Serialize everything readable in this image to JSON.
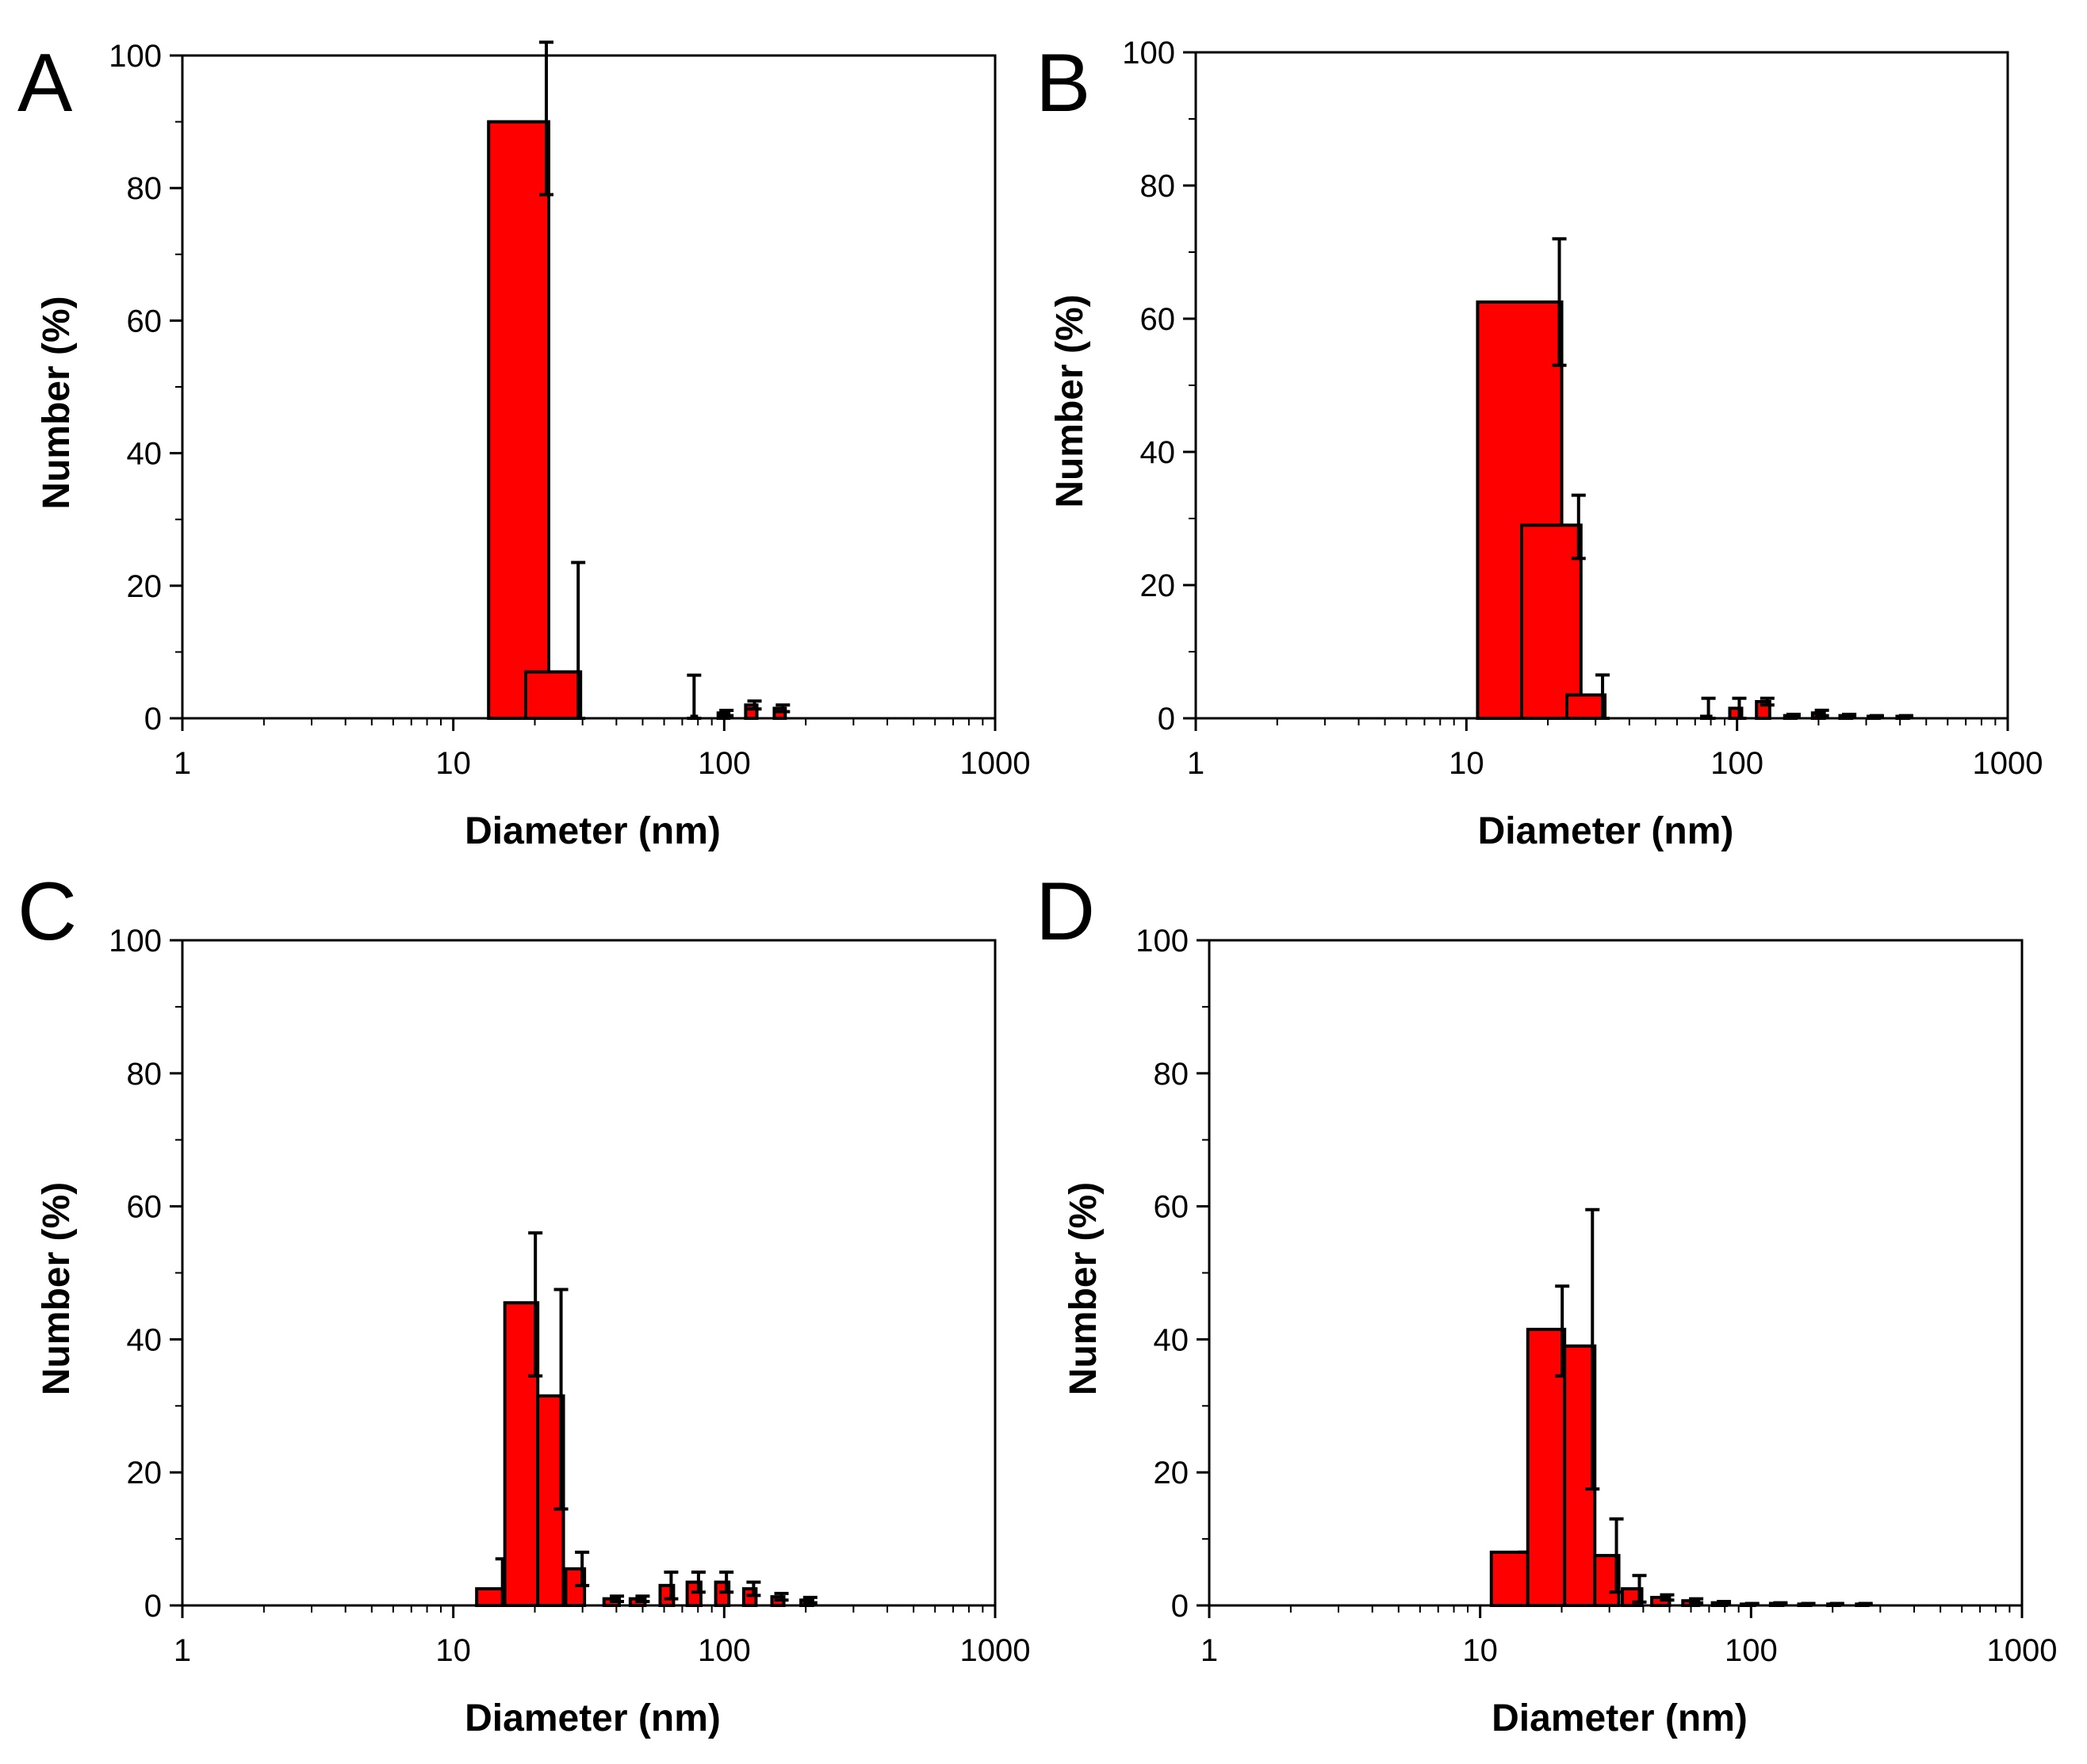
{
  "chart_data": [
    {
      "panel": "A",
      "type": "bar",
      "xscale": "log",
      "xlim": [
        1,
        1000
      ],
      "ylim": [
        0,
        100
      ],
      "xlabel": "Diameter (nm)",
      "ylabel": "Number (%)",
      "xticks": [
        "1",
        "10",
        "100",
        "1000"
      ],
      "yticks": [
        "0",
        "20",
        "40",
        "60",
        "80",
        "100"
      ],
      "bars": [
        {
          "from": 13.5,
          "to": 22.5,
          "value": 90,
          "err_high": 102,
          "err_low": 79
        },
        {
          "from": 18.5,
          "to": 29.5,
          "value": 7,
          "err_high": 23.5,
          "err_low": 0
        },
        {
          "from": 76,
          "to": 79,
          "value": 0.3,
          "err_high": 6.5,
          "err_low": 0
        },
        {
          "from": 95,
          "to": 104,
          "value": 0.8,
          "err_high": 1.2,
          "err_low": 0.4
        },
        {
          "from": 120,
          "to": 132,
          "value": 2,
          "err_high": 2.6,
          "err_low": 1.4
        },
        {
          "from": 153,
          "to": 168,
          "value": 1.5,
          "err_high": 2,
          "err_low": 1
        }
      ]
    },
    {
      "panel": "B",
      "type": "bar",
      "xscale": "log",
      "xlim": [
        1,
        1000
      ],
      "ylim": [
        0,
        100
      ],
      "xlabel": "Diameter (nm)",
      "ylabel": "Number (%)",
      "xticks": [
        "1",
        "10",
        "100",
        "1000"
      ],
      "yticks": [
        "0",
        "20",
        "40",
        "60",
        "80",
        "100"
      ],
      "bars": [
        {
          "from": 11,
          "to": 22.5,
          "value": 62.5,
          "err_high": 72,
          "err_low": 53
        },
        {
          "from": 16,
          "to": 26.5,
          "value": 29,
          "err_high": 33.5,
          "err_low": 24
        },
        {
          "from": 23.5,
          "to": 32.5,
          "value": 3.5,
          "err_high": 6.5,
          "err_low": 0
        },
        {
          "from": 74,
          "to": 80,
          "value": 0.3,
          "err_high": 3,
          "err_low": 0
        },
        {
          "from": 94,
          "to": 104,
          "value": 1.5,
          "err_high": 3,
          "err_low": 0
        },
        {
          "from": 118,
          "to": 132,
          "value": 2.5,
          "err_high": 3,
          "err_low": 2
        },
        {
          "from": 150,
          "to": 165,
          "value": 0.4,
          "err_high": 0.6,
          "err_low": 0.2
        },
        {
          "from": 190,
          "to": 210,
          "value": 0.8,
          "err_high": 1.2,
          "err_low": 0.4
        },
        {
          "from": 240,
          "to": 265,
          "value": 0.4,
          "err_high": 0.6,
          "err_low": 0.2
        },
        {
          "from": 305,
          "to": 335,
          "value": 0.3,
          "err_high": 0.4,
          "err_low": 0.2
        },
        {
          "from": 390,
          "to": 430,
          "value": 0.3,
          "err_high": 0.4,
          "err_low": 0.2
        }
      ]
    },
    {
      "panel": "C",
      "type": "bar",
      "xscale": "log",
      "xlim": [
        1,
        1000
      ],
      "ylim": [
        0,
        100
      ],
      "xlabel": "Diameter (nm)",
      "ylabel": "Number (%)",
      "xticks": [
        "1",
        "10",
        "100",
        "1000"
      ],
      "yticks": [
        "0",
        "20",
        "40",
        "60",
        "80",
        "100"
      ],
      "bars": [
        {
          "from": 12.2,
          "to": 15.5,
          "value": 2.5,
          "err_high": 7,
          "err_low": 0
        },
        {
          "from": 15.5,
          "to": 20.5,
          "value": 45.5,
          "err_high": 56,
          "err_low": 34.5
        },
        {
          "from": 20.5,
          "to": 25.5,
          "value": 31.5,
          "err_high": 47.5,
          "err_low": 14.5
        },
        {
          "from": 26,
          "to": 30.5,
          "value": 5.5,
          "err_high": 8,
          "err_low": 3
        },
        {
          "from": 36,
          "to": 41,
          "value": 1,
          "err_high": 1.4,
          "err_low": 0.6
        },
        {
          "from": 45,
          "to": 51,
          "value": 1,
          "err_high": 1.4,
          "err_low": 0.6
        },
        {
          "from": 58,
          "to": 65,
          "value": 3,
          "err_high": 5,
          "err_low": 1
        },
        {
          "from": 73,
          "to": 82,
          "value": 3.5,
          "err_high": 5,
          "err_low": 2
        },
        {
          "from": 93,
          "to": 104,
          "value": 3.5,
          "err_high": 5,
          "err_low": 2
        },
        {
          "from": 118,
          "to": 131,
          "value": 2.5,
          "err_high": 3.5,
          "err_low": 1.5
        },
        {
          "from": 150,
          "to": 166,
          "value": 1.3,
          "err_high": 1.8,
          "err_low": 0.8
        },
        {
          "from": 192,
          "to": 212,
          "value": 0.8,
          "err_high": 1.2,
          "err_low": 0.4
        }
      ]
    },
    {
      "panel": "D",
      "type": "bar",
      "xscale": "log",
      "xlim": [
        1,
        1000
      ],
      "ylim": [
        0,
        100
      ],
      "xlabel": "Diameter (nm)",
      "ylabel": "Number (%)",
      "xticks": [
        "1",
        "10",
        "100",
        "1000"
      ],
      "yticks": [
        "0",
        "20",
        "40",
        "60",
        "80",
        "100"
      ],
      "bars": [
        {
          "from": 11,
          "to": 15,
          "value": 8,
          "err_high": 8,
          "err_low": 8
        },
        {
          "from": 15,
          "to": 20.5,
          "value": 41.5,
          "err_high": 48,
          "err_low": 34.5
        },
        {
          "from": 20.5,
          "to": 26.5,
          "value": 39,
          "err_high": 59.5,
          "err_low": 17.5
        },
        {
          "from": 26.5,
          "to": 32.5,
          "value": 7.5,
          "err_high": 13,
          "err_low": 2
        },
        {
          "from": 33.5,
          "to": 39.5,
          "value": 2.5,
          "err_high": 4.5,
          "err_low": 0.5
        },
        {
          "from": 43,
          "to": 50,
          "value": 1.2,
          "err_high": 1.6,
          "err_low": 0.8
        },
        {
          "from": 56,
          "to": 64,
          "value": 0.7,
          "err_high": 1,
          "err_low": 0.4
        },
        {
          "from": 72,
          "to": 81,
          "value": 0.4,
          "err_high": 0.6,
          "err_low": 0.2
        },
        {
          "from": 92,
          "to": 103,
          "value": 0.2,
          "err_high": 0.3,
          "err_low": 0.1
        },
        {
          "from": 118,
          "to": 131,
          "value": 0.3,
          "err_high": 0.4,
          "err_low": 0.2
        },
        {
          "from": 150,
          "to": 166,
          "value": 0.2,
          "err_high": 0.3,
          "err_low": 0.1
        },
        {
          "from": 192,
          "to": 212,
          "value": 0.2,
          "err_high": 0.3,
          "err_low": 0.1
        },
        {
          "from": 245,
          "to": 270,
          "value": 0.2,
          "err_high": 0.3,
          "err_low": 0.1
        }
      ]
    }
  ],
  "style": {
    "bar_color": "#ff0000",
    "edge_color": "#000000"
  }
}
